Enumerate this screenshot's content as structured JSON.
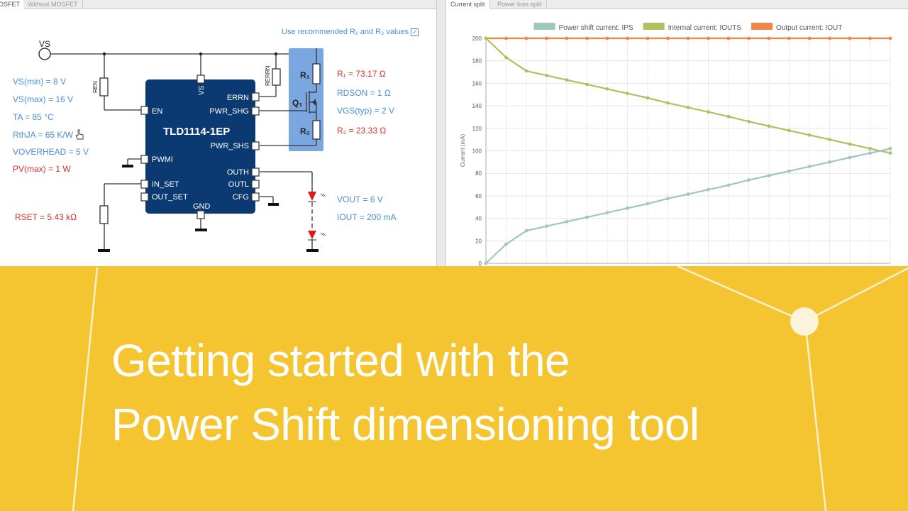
{
  "left_panel": {
    "tabs": [
      {
        "label": "OSFET",
        "active": true
      },
      {
        "label": "Without MOSFET",
        "active": false
      }
    ],
    "recommend_label": "Use recommended R₁ and R₂ values",
    "recommend_checked": true,
    "chip_name": "TLD1114-1EP",
    "supply_label": "VS",
    "chip_pins": {
      "vs": "VS",
      "errn": "ERRN",
      "pwr_shg": "PWR_SHG",
      "pwr_shs": "PWR_SHS",
      "en": "EN",
      "pwmi": "PWMI",
      "in_set": "IN_SET",
      "out_set": "OUT_SET",
      "outh": "OUTH",
      "outl": "OUTL",
      "cfg": "CFG",
      "gnd": "GND"
    },
    "component_labels": {
      "ren": "REN",
      "rerrn": "RERRN",
      "r1": "R₁",
      "q1": "Q₁",
      "r2": "R₂"
    },
    "inputs": [
      {
        "text": "VS(min) = 8 V",
        "color": "#4a8fd8"
      },
      {
        "text": "VS(max) = 16 V",
        "color": "#4a8fd8"
      },
      {
        "text": "TA = 85 °C",
        "color": "#4a8fd8"
      },
      {
        "text": "RthJA = 65 K/W",
        "color": "#4a8fd8"
      },
      {
        "text": "VOVERHEAD = 5 V",
        "color": "#4a8fd8"
      },
      {
        "text": "PV(max) = 1 W",
        "color": "#d9322a"
      }
    ],
    "rset": "RSET = 5.43 kΩ",
    "mosfet_values": [
      {
        "text": "R₁ = 73.17 Ω",
        "color": "#d9322a"
      },
      {
        "text": "RDSON = 1 Ω",
        "color": "#4a8fd8"
      },
      {
        "text": "VGS(typ) = 2 V",
        "color": "#4a8fd8"
      },
      {
        "text": "R₂ = 23.33 Ω",
        "color": "#d9322a"
      }
    ],
    "output_values": [
      {
        "text": "VOUT = 6 V",
        "color": "#4a8fd8"
      },
      {
        "text": "IOUT = 200 mA",
        "color": "#4a8fd8"
      }
    ]
  },
  "right_panel": {
    "tabs": [
      {
        "label": "Current split",
        "active": true
      },
      {
        "label": "Power loss split",
        "active": false
      }
    ]
  },
  "chart_data": {
    "type": "line",
    "title": "",
    "xlabel": "",
    "ylabel": "Current (mA)",
    "ylim": [
      0,
      200
    ],
    "yticks": [
      0,
      20,
      40,
      60,
      80,
      100,
      120,
      140,
      160,
      180,
      200
    ],
    "grid": true,
    "legend": "top",
    "x": [
      0,
      1,
      2,
      3,
      4,
      5,
      6,
      7,
      8,
      9,
      10,
      11,
      12,
      13,
      14,
      15,
      16,
      17,
      18,
      19,
      20
    ],
    "series": [
      {
        "name": "Power shift current: IPS",
        "color": "#9dc8bb",
        "values": [
          0,
          17,
          29,
          33,
          37,
          41,
          45,
          49,
          53,
          57.5,
          61.5,
          65.5,
          69.5,
          74,
          78,
          82,
          86,
          90,
          94,
          98,
          102
        ]
      },
      {
        "name": "Internal current: IOUTS",
        "color": "#aec160",
        "values": [
          200,
          183,
          171,
          167,
          163,
          159,
          155,
          151,
          147,
          142.5,
          138.5,
          134.5,
          130.5,
          126,
          122,
          118,
          114,
          110,
          106,
          102,
          98
        ]
      },
      {
        "name": "Output current: IOUT",
        "color": "#f0874a",
        "values": [
          200,
          200,
          200,
          200,
          200,
          200,
          200,
          200,
          200,
          200,
          200,
          200,
          200,
          200,
          200,
          200,
          200,
          200,
          200,
          200,
          200
        ]
      }
    ]
  },
  "banner": {
    "line1": "Getting started with the",
    "line2": "Power Shift dimensioning tool",
    "background": "#F5C431"
  }
}
